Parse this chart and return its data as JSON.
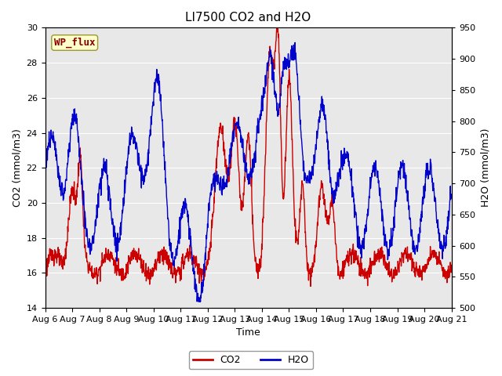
{
  "title": "LI7500 CO2 and H2O",
  "xlabel": "Time",
  "ylabel_left": "CO2 (mmol/m3)",
  "ylabel_right": "H2O (mmol/m3)",
  "ylim_left": [
    14,
    30
  ],
  "ylim_right": [
    500,
    950
  ],
  "yticks_left": [
    14,
    16,
    18,
    20,
    22,
    24,
    26,
    28,
    30
  ],
  "yticks_right": [
    500,
    550,
    600,
    650,
    700,
    750,
    800,
    850,
    900,
    950
  ],
  "xtick_labels": [
    "Aug 6",
    "Aug 7",
    "Aug 8",
    "Aug 9",
    "Aug 10",
    "Aug 11",
    "Aug 12",
    "Aug 13",
    "Aug 14",
    "Aug 15",
    "Aug 16",
    "Aug 17",
    "Aug 18",
    "Aug 19",
    "Aug 20",
    "Aug 21"
  ],
  "co2_color": "#cc0000",
  "h2o_color": "#0000cc",
  "background_color": "#e8e8e8",
  "legend_box_facecolor": "#ffffcc",
  "legend_box_edgecolor": "#999933",
  "wp_flux_label": "WP_flux",
  "wp_flux_text_color": "#880000",
  "grid_color": "#ffffff",
  "title_fontsize": 11,
  "axis_label_fontsize": 9,
  "tick_fontsize": 8,
  "linewidth": 1.0
}
